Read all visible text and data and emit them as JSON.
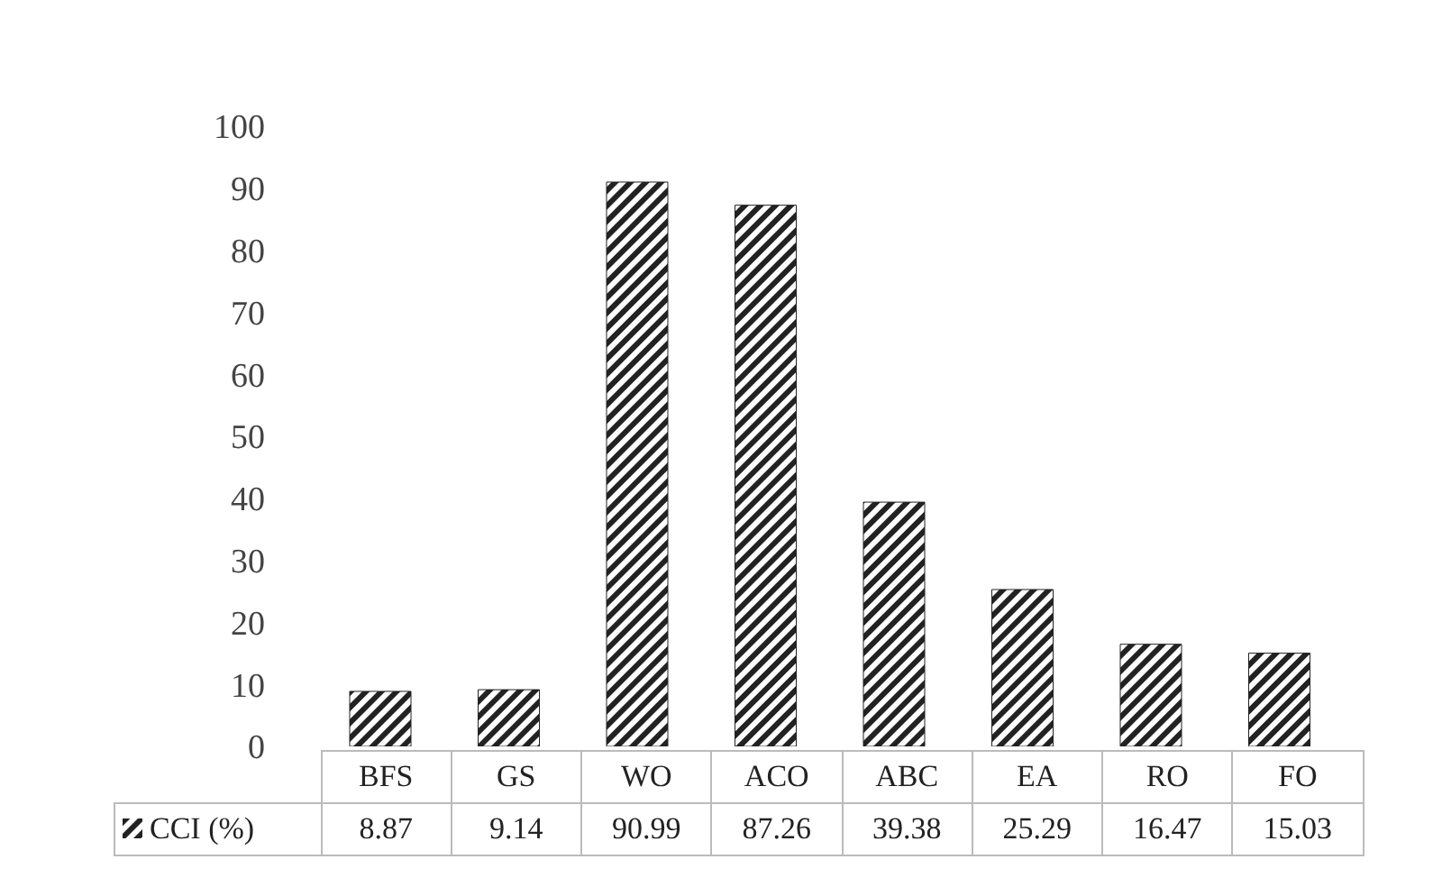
{
  "chart_data": {
    "type": "bar",
    "categories": [
      "BFS",
      "GS",
      "WO",
      "ACO",
      "ABC",
      "EA",
      "RO",
      "FO"
    ],
    "series": [
      {
        "name": "CCI (%)",
        "color": "#222222",
        "values": [
          8.87,
          9.14,
          90.99,
          87.26,
          39.38,
          25.29,
          16.47,
          15.03
        ]
      }
    ],
    "ylim": [
      0,
      100
    ],
    "yticks": [
      0,
      10,
      20,
      30,
      40,
      50,
      60,
      70,
      80,
      90,
      100
    ],
    "data_labels": true,
    "legend": "bottom"
  }
}
